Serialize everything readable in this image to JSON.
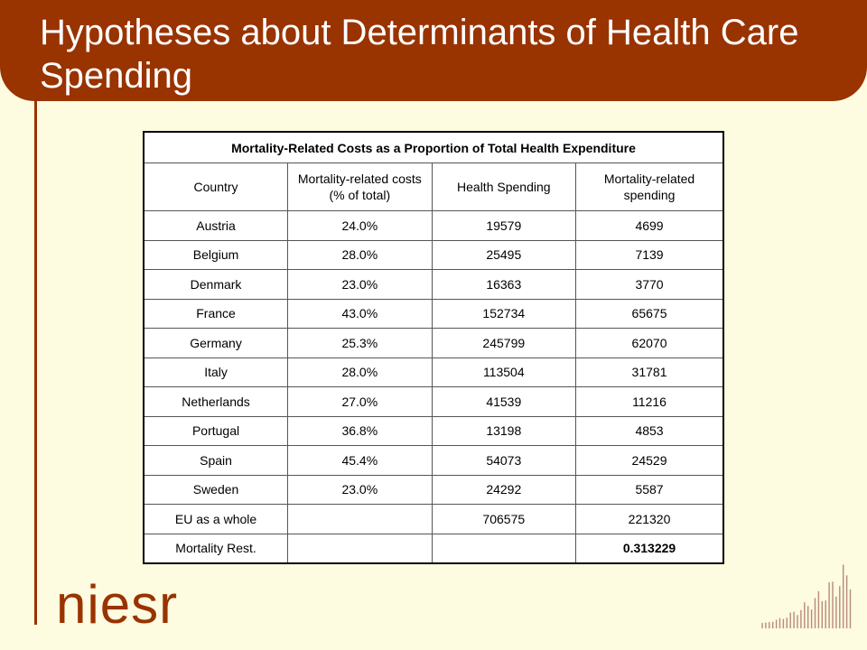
{
  "slide": {
    "title": "Hypotheses about Determinants of Health Care Spending",
    "logo_text": "niesr"
  },
  "table": {
    "caption": "Mortality-Related Costs as a Proportion of Total Health Expenditure",
    "headers": [
      "Country",
      "Mortality-related costs (% of total)",
      "Health Spending",
      "Mortality-related spending"
    ],
    "rows": [
      [
        "Austria",
        "24.0%",
        "19579",
        "4699"
      ],
      [
        "Belgium",
        "28.0%",
        "25495",
        "7139"
      ],
      [
        "Denmark",
        "23.0%",
        "16363",
        "3770"
      ],
      [
        "France",
        "43.0%",
        "152734",
        "65675"
      ],
      [
        "Germany",
        "25.3%",
        "245799",
        "62070"
      ],
      [
        "Italy",
        "28.0%",
        "113504",
        "31781"
      ],
      [
        "Netherlands",
        "27.0%",
        "41539",
        "11216"
      ],
      [
        "Portugal",
        "36.8%",
        "13198",
        "4853"
      ],
      [
        "Spain",
        "45.4%",
        "54073",
        "24529"
      ],
      [
        "Sweden",
        "23.0%",
        "24292",
        "5587"
      ],
      [
        "EU as a whole",
        "",
        "706575",
        "221320"
      ],
      [
        "Mortality Rest.",
        "",
        "",
        "0.313229"
      ]
    ]
  },
  "colors": {
    "brand": "#993300",
    "background": "#fdfbe0"
  },
  "icons": {
    "decoration": "bar-pattern-logo-icon"
  }
}
